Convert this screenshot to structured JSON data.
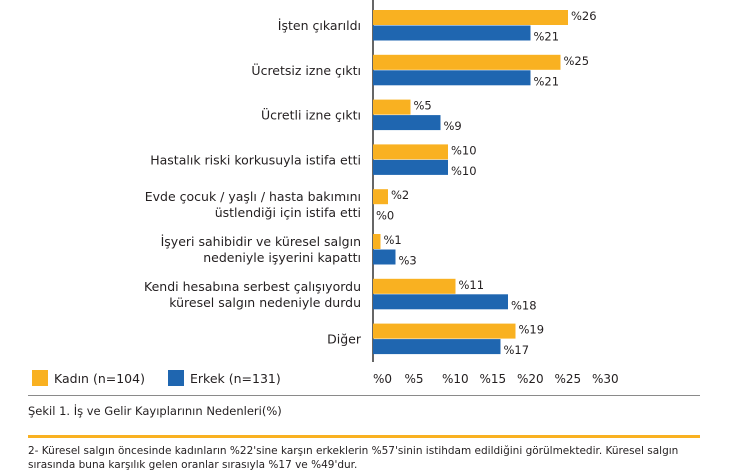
{
  "chart_data": {
    "type": "bar",
    "orientation": "horizontal",
    "categories": [
      [
        "İşten çıkarıldı"
      ],
      [
        "Ücretsiz izne çıktı"
      ],
      [
        "Ücretli izne çıktı"
      ],
      [
        "Hastalık riski korkusuyla istifa etti"
      ],
      [
        "Evde çocuk / yaşlı / hasta bakımını",
        "üstlendiği için istifa etti"
      ],
      [
        "İşyeri sahibidir ve küresel salgın",
        "nedeniyle işyerini kapattı"
      ],
      [
        "Kendi hesabına serbest çalışıyordu",
        "küresel salgın nedeniyle durdu"
      ],
      [
        "Diğer"
      ]
    ],
    "series": [
      {
        "name": "Kadın (n=104)",
        "color": "#F9B121",
        "values": [
          26,
          25,
          5,
          10,
          2,
          1,
          11,
          19
        ]
      },
      {
        "name": "Erkek (n=131)",
        "color": "#1F66B0",
        "values": [
          21,
          21,
          9,
          10,
          0,
          3,
          18,
          17
        ]
      }
    ],
    "value_prefix": "%",
    "xlim": [
      0,
      30
    ],
    "x_ticks": [
      "%0",
      "%5",
      "%10",
      "%15",
      "%20",
      "%25",
      "%30"
    ],
    "grid": false,
    "legend_placement": "bottom-left"
  },
  "legend": {
    "women": "Kadın (n=104)",
    "men": "Erkek (n=131)"
  },
  "caption": "Şekil 1. İş ve Gelir Kayıplarının Nedenleri(%)",
  "footnote": "2- Küresel salgın öncesinde kadınların %22'sine karşın erkeklerin %57'sinin istihdam edildiğini görülmektedir. Küresel salgın sırasında buna karşılık gelen oranlar sırasıyla %17 ve %49'dur."
}
